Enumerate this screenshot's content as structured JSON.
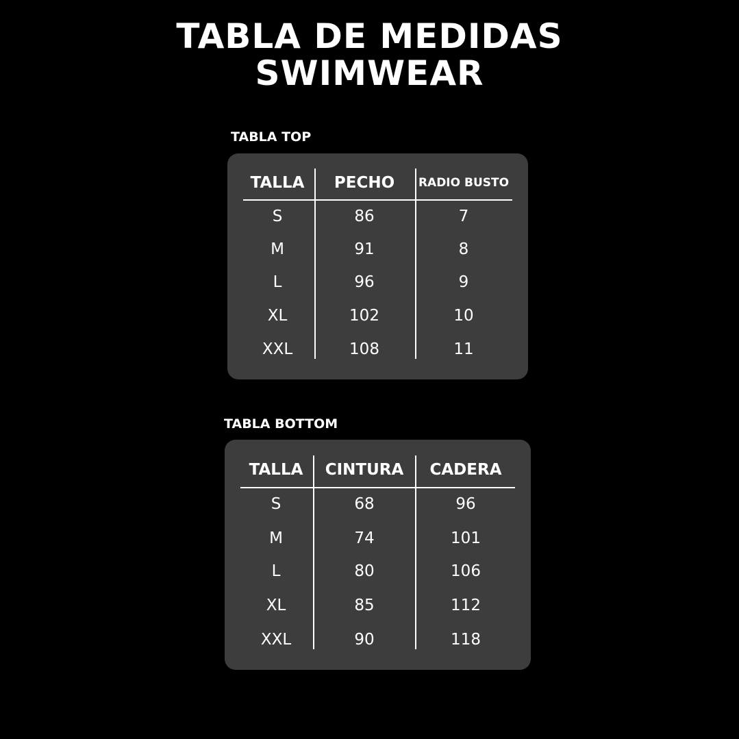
{
  "title": {
    "line1": "TABLA DE MEDIDAS",
    "line2": "SWIMWEAR"
  },
  "colors": {
    "background": "#000000",
    "panel": "#3d3d3d",
    "text": "#ffffff"
  },
  "tables": [
    {
      "label": "TABLA TOP",
      "headers": [
        "TALLA",
        "PECHO",
        "RADIO BUSTO"
      ],
      "rows": [
        [
          "S",
          "86",
          "7"
        ],
        [
          "M",
          "91",
          "8"
        ],
        [
          "L",
          "96",
          "9"
        ],
        [
          "XL",
          "102",
          "10"
        ],
        [
          "XXL",
          "108",
          "11"
        ]
      ]
    },
    {
      "label": "TABLA BOTTOM",
      "headers": [
        "TALLA",
        "CINTURA",
        "CADERA"
      ],
      "rows": [
        [
          "S",
          "68",
          "96"
        ],
        [
          "M",
          "74",
          "101"
        ],
        [
          "L",
          "80",
          "106"
        ],
        [
          "XL",
          "85",
          "112"
        ],
        [
          "XXL",
          "90",
          "118"
        ]
      ]
    }
  ]
}
